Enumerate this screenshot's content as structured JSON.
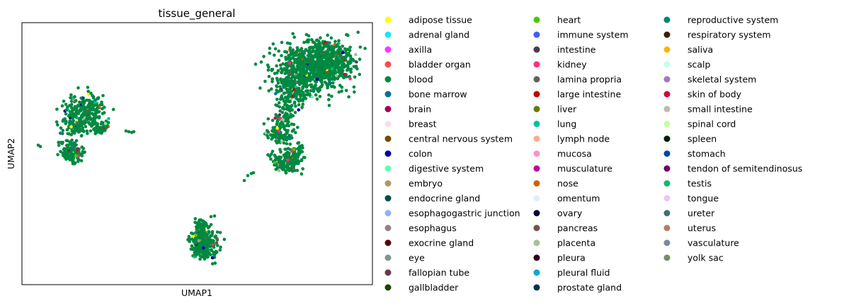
{
  "chart_data": {
    "type": "scatter",
    "title": "tissue_general",
    "xlabel": "UMAP1",
    "ylabel": "UMAP2",
    "grid": false,
    "x_ticks": "none",
    "y_ticks": "none",
    "legend_placement": "right, outside plot, 3 columns",
    "dominant_category": "blood",
    "legend": [
      {
        "label": "adipose tissue",
        "color": "#ffff00"
      },
      {
        "label": "adrenal gland",
        "color": "#1ce6ff"
      },
      {
        "label": "axilla",
        "color": "#ff34ff"
      },
      {
        "label": "bladder organ",
        "color": "#ff4a46"
      },
      {
        "label": "blood",
        "color": "#008941"
      },
      {
        "label": "bone marrow",
        "color": "#006fa6"
      },
      {
        "label": "brain",
        "color": "#a30059"
      },
      {
        "label": "breast",
        "color": "#ffdbe5"
      },
      {
        "label": "central nervous system",
        "color": "#7a4900"
      },
      {
        "label": "colon",
        "color": "#0000a6"
      },
      {
        "label": "digestive system",
        "color": "#63ffac"
      },
      {
        "label": "embryo",
        "color": "#b79762"
      },
      {
        "label": "endocrine gland",
        "color": "#004d43"
      },
      {
        "label": "esophagogastric junction",
        "color": "#8fb0ff"
      },
      {
        "label": "esophagus",
        "color": "#997d87"
      },
      {
        "label": "exocrine gland",
        "color": "#5a0007"
      },
      {
        "label": "eye",
        "color": "#809693"
      },
      {
        "label": "fallopian tube",
        "color": "#6a3a4c"
      },
      {
        "label": "gallbladder",
        "color": "#1b4400"
      },
      {
        "label": "heart",
        "color": "#4fc601"
      },
      {
        "label": "immune system",
        "color": "#3b5dff"
      },
      {
        "label": "intestine",
        "color": "#4a3b53"
      },
      {
        "label": "kidney",
        "color": "#ff2f80"
      },
      {
        "label": "lamina propria",
        "color": "#61615a"
      },
      {
        "label": "large intestine",
        "color": "#ba0900"
      },
      {
        "label": "liver",
        "color": "#6b7900"
      },
      {
        "label": "lung",
        "color": "#00c2a0"
      },
      {
        "label": "lymph node",
        "color": "#ffaa92"
      },
      {
        "label": "mucosa",
        "color": "#ff90c9"
      },
      {
        "label": "musculature",
        "color": "#b903aa"
      },
      {
        "label": "nose",
        "color": "#d16100"
      },
      {
        "label": "omentum",
        "color": "#ddefff"
      },
      {
        "label": "ovary",
        "color": "#000035"
      },
      {
        "label": "pancreas",
        "color": "#7b4f4b"
      },
      {
        "label": "placenta",
        "color": "#a1c299"
      },
      {
        "label": "pleura",
        "color": "#300018"
      },
      {
        "label": "pleural fluid",
        "color": "#0aa6d8"
      },
      {
        "label": "prostate gland",
        "color": "#013349"
      },
      {
        "label": "reproductive system",
        "color": "#00846f"
      },
      {
        "label": "respiratory system",
        "color": "#372101"
      },
      {
        "label": "saliva",
        "color": "#ffb500"
      },
      {
        "label": "scalp",
        "color": "#c2ffed"
      },
      {
        "label": "skeletal system",
        "color": "#a079bf"
      },
      {
        "label": "skin of body",
        "color": "#cc0744"
      },
      {
        "label": "small intestine",
        "color": "#c0b9b2"
      },
      {
        "label": "spinal cord",
        "color": "#c2ff99"
      },
      {
        "label": "spleen",
        "color": "#001e09"
      },
      {
        "label": "stomach",
        "color": "#00489c"
      },
      {
        "label": "tendon of semitendinosus",
        "color": "#6f0062"
      },
      {
        "label": "testis",
        "color": "#0cbd66"
      },
      {
        "label": "tongue",
        "color": "#eec3ff"
      },
      {
        "label": "ureter",
        "color": "#456d75"
      },
      {
        "label": "uterus",
        "color": "#b77b68"
      },
      {
        "label": "vasculature",
        "color": "#7a87a1"
      },
      {
        "label": "yolk sac",
        "color": "#788d66"
      }
    ]
  }
}
